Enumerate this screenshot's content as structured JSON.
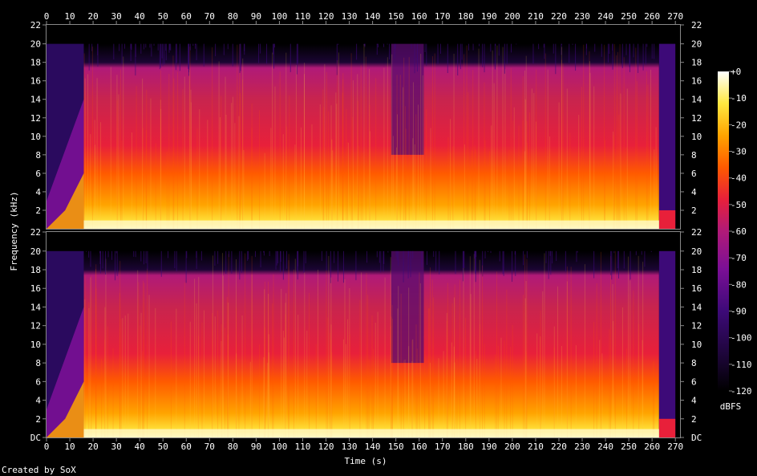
{
  "chart_data": {
    "type": "heatmap",
    "title": "",
    "xlabel": "Time (s)",
    "ylabel": "Frequency (kHz)",
    "xlim": [
      0,
      272
    ],
    "ylim": [
      0,
      22.05
    ],
    "x_ticks": [
      "0",
      "10",
      "20",
      "30",
      "40",
      "50",
      "60",
      "70",
      "80",
      "90",
      "100",
      "110",
      "120",
      "130",
      "140",
      "150",
      "160",
      "170",
      "180",
      "190",
      "200",
      "210",
      "220",
      "230",
      "240",
      "250",
      "260",
      "270"
    ],
    "channels": [
      {
        "y_ticks": [
          "22",
          "20",
          "18",
          "16",
          "14",
          "12",
          "10",
          "8",
          "6",
          "4",
          "2"
        ]
      },
      {
        "y_ticks": [
          "22",
          "20",
          "18",
          "16",
          "14",
          "12",
          "10",
          "8",
          "6",
          "4",
          "2",
          "DC"
        ]
      }
    ],
    "colorbar": {
      "label": "dBFS",
      "range": [
        -120,
        0
      ],
      "ticks": [
        "+0",
        "-10",
        "-20",
        "-30",
        "-40",
        "-50",
        "-60",
        "-70",
        "-80",
        "-90",
        "-100",
        "-110",
        "-120"
      ]
    },
    "content": {
      "lowpass_khz": 20,
      "intro_fade_in_s": [
        0,
        16
      ],
      "quiet_section_s": [
        148,
        162
      ],
      "outro_fade_s": [
        263,
        270
      ]
    },
    "colors": {
      "background": "#000000",
      "palette": [
        "#000000",
        "#1a0533",
        "#3d0a78",
        "#7a0f96",
        "#b01a78",
        "#e8203a",
        "#ff5a00",
        "#ffa400",
        "#ffe840",
        "#ffffe0"
      ]
    }
  },
  "credit": "Created by SoX"
}
